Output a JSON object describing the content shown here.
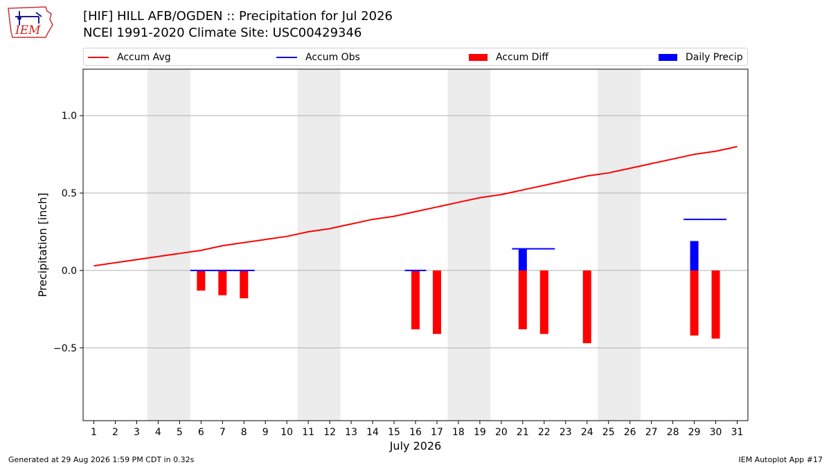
{
  "header": {
    "title_line1": "[HIF] HILL AFB/OGDEN :: Precipitation for Jul 2026",
    "title_line2": "NCEI 1991-2020 Climate Site: USC00429346",
    "logo_text": "IEM"
  },
  "legend": {
    "items": [
      {
        "label": "Accum Avg",
        "color": "#ff0000",
        "kind": "line"
      },
      {
        "label": "Accum Obs",
        "color": "#0000ff",
        "kind": "line"
      },
      {
        "label": "Accum Diff",
        "color": "#ff0000",
        "kind": "box"
      },
      {
        "label": "Daily Precip",
        "color": "#0000ff",
        "kind": "box"
      }
    ]
  },
  "footer": {
    "generated": "Generated at 29 Aug 2026 1:59 PM CDT in 0.32s",
    "app": "IEM Autoplot App #17"
  },
  "chart_data": {
    "type": "bar",
    "xlabel": "July 2026",
    "ylabel": "Precipitation [inch]",
    "ylim": [
      -0.97,
      1.3
    ],
    "xlim": [
      0.5,
      31.5
    ],
    "yticks": [
      -0.5,
      0.0,
      0.5,
      1.0
    ],
    "ytick_labels": [
      "−0.5",
      "0.0",
      "0.5",
      "1.0"
    ],
    "days": [
      1,
      2,
      3,
      4,
      5,
      6,
      7,
      8,
      9,
      10,
      11,
      12,
      13,
      14,
      15,
      16,
      17,
      18,
      19,
      20,
      21,
      22,
      23,
      24,
      25,
      26,
      27,
      28,
      29,
      30,
      31
    ],
    "grid": "horizontal",
    "weekend_shading": [
      [
        3.5,
        5.5
      ],
      [
        10.5,
        12.5
      ],
      [
        17.5,
        19.5
      ],
      [
        24.5,
        26.5
      ]
    ],
    "series": [
      {
        "name": "Accum Avg",
        "kind": "line",
        "color": "#ff0000",
        "values": [
          0.03,
          0.05,
          0.07,
          0.09,
          0.11,
          0.13,
          0.16,
          0.18,
          0.2,
          0.22,
          0.25,
          0.27,
          0.3,
          0.33,
          0.35,
          0.38,
          0.41,
          0.44,
          0.47,
          0.49,
          0.52,
          0.55,
          0.58,
          0.61,
          0.63,
          0.66,
          0.69,
          0.72,
          0.75,
          0.77,
          0.8
        ]
      },
      {
        "name": "Accum Obs",
        "kind": "step",
        "color": "#0000ff",
        "values": [
          null,
          null,
          null,
          null,
          null,
          0.0,
          0.0,
          0.0,
          null,
          null,
          null,
          null,
          null,
          null,
          null,
          0.0,
          null,
          null,
          null,
          null,
          0.14,
          0.14,
          null,
          null,
          null,
          null,
          null,
          null,
          0.33,
          0.33,
          null
        ]
      },
      {
        "name": "Accum Diff",
        "kind": "bar",
        "color": "#ff0000",
        "values": [
          null,
          null,
          null,
          null,
          null,
          -0.13,
          -0.16,
          -0.18,
          null,
          null,
          null,
          null,
          null,
          null,
          null,
          -0.38,
          -0.41,
          null,
          null,
          null,
          -0.38,
          -0.41,
          null,
          -0.47,
          null,
          null,
          null,
          null,
          -0.42,
          -0.44,
          null
        ]
      },
      {
        "name": "Daily Precip",
        "kind": "bar",
        "color": "#0000ff",
        "values": [
          null,
          null,
          null,
          null,
          null,
          null,
          null,
          null,
          null,
          null,
          null,
          null,
          null,
          null,
          null,
          null,
          null,
          null,
          null,
          null,
          0.14,
          null,
          null,
          null,
          null,
          null,
          null,
          null,
          0.19,
          null,
          null
        ]
      }
    ]
  }
}
